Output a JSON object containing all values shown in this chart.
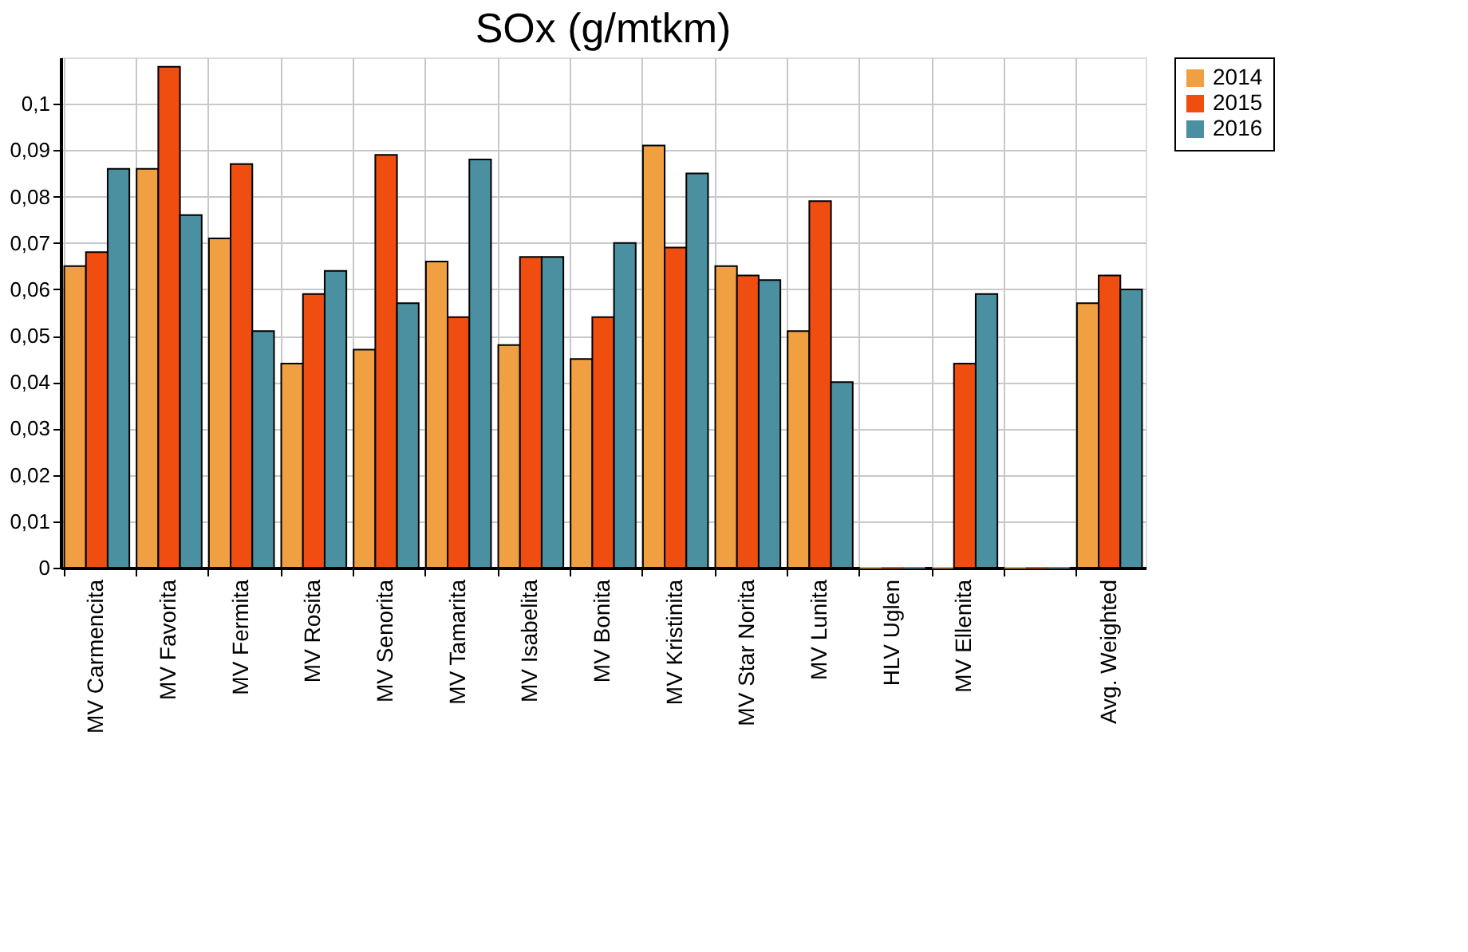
{
  "chart_data": {
    "type": "bar",
    "title": "SOx (g/mtkm)",
    "categories": [
      "MV Carmencita",
      "MV Favorita",
      "MV Fermita",
      "MV Rosita",
      "MV Senorita",
      "MV Tamarita",
      "MV Isabelita",
      "MV Bonita",
      "MV Kristinita",
      "MV Star Norita",
      "MV Lunita",
      "HLV Uglen",
      "MV Ellenita",
      null,
      "Avg. Weighted"
    ],
    "series": [
      {
        "name": "2014",
        "color": "#f0a040",
        "values": [
          0.065,
          0.086,
          0.071,
          0.044,
          0.047,
          0.066,
          0.048,
          0.045,
          0.091,
          0.065,
          0.051,
          0,
          0,
          0,
          0.057
        ]
      },
      {
        "name": "2015",
        "color": "#f04e10",
        "values": [
          0.068,
          0.108,
          0.087,
          0.059,
          0.089,
          0.054,
          0.067,
          0.054,
          0.069,
          0.063,
          0.079,
          0,
          0.044,
          0,
          0.063
        ]
      },
      {
        "name": "2016",
        "color": "#4a90a0",
        "values": [
          0.086,
          0.076,
          0.051,
          0.064,
          0.057,
          0.088,
          0.067,
          0.07,
          0.085,
          0.062,
          0.04,
          0,
          0.059,
          0,
          0.06
        ]
      }
    ],
    "ylim": [
      0,
      0.11
    ],
    "yticks": [
      {
        "value": 0,
        "label": "0"
      },
      {
        "value": 0.01,
        "label": "0,01"
      },
      {
        "value": 0.02,
        "label": "0,02"
      },
      {
        "value": 0.03,
        "label": "0,03"
      },
      {
        "value": 0.04,
        "label": "0,04"
      },
      {
        "value": 0.05,
        "label": "0,05"
      },
      {
        "value": 0.06,
        "label": "0,06"
      },
      {
        "value": 0.07,
        "label": "0,07"
      },
      {
        "value": 0.08,
        "label": "0,08"
      },
      {
        "value": 0.09,
        "label": "0,09"
      },
      {
        "value": 0.1,
        "label": "0,1"
      }
    ],
    "grid": true,
    "legend": "top right"
  }
}
